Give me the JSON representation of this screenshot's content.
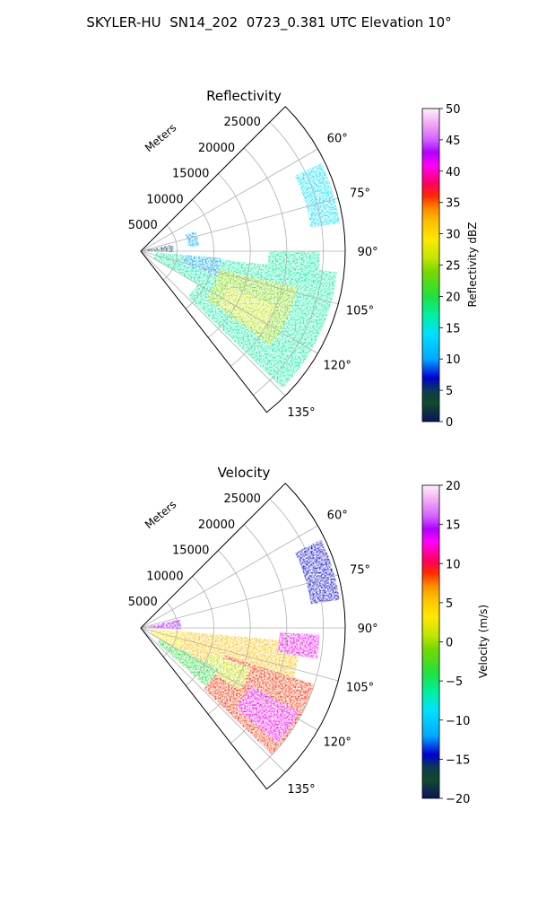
{
  "figure": {
    "suptitle": "SKYLER-HU  SN14_202  0723_0.381 UTC Elevation 10°"
  },
  "chart_data": [
    {
      "type": "polar-sector",
      "title": "Reflectivity",
      "radial_axis": {
        "label": "Meters",
        "ticks": [
          "5000",
          "10000",
          "15000",
          "20000",
          "25000"
        ],
        "tick_values": [
          5000,
          10000,
          15000,
          20000,
          25000
        ],
        "max": 28000
      },
      "azimuth_axis": {
        "ticks": [
          "60°",
          "75°",
          "90°",
          "105°",
          "120°",
          "135°"
        ],
        "tick_values": [
          60,
          75,
          90,
          105,
          120,
          135
        ],
        "range": [
          45,
          142
        ]
      },
      "colorbar": {
        "label": "Reflectivity dBZ",
        "ticks": [
          "0",
          "5",
          "10",
          "15",
          "20",
          "25",
          "30",
          "35",
          "40",
          "45",
          "50"
        ],
        "min": 0,
        "max": 50,
        "stops": [
          [
            0,
            "#0a1460"
          ],
          [
            0.06,
            "#114a2a"
          ],
          [
            0.1,
            "#0b3a55"
          ],
          [
            0.14,
            "#0000d0"
          ],
          [
            0.2,
            "#00a8ff"
          ],
          [
            0.28,
            "#00e0ff"
          ],
          [
            0.34,
            "#00f0a0"
          ],
          [
            0.4,
            "#20e040"
          ],
          [
            0.48,
            "#7ad800"
          ],
          [
            0.52,
            "#bfe600"
          ],
          [
            0.58,
            "#ffe800"
          ],
          [
            0.64,
            "#ffc000"
          ],
          [
            0.68,
            "#ff8a00"
          ],
          [
            0.72,
            "#ff2a00"
          ],
          [
            0.76,
            "#ff0060"
          ],
          [
            0.82,
            "#ff00ff"
          ],
          [
            0.86,
            "#b000ff"
          ],
          [
            0.9,
            "#d060ff"
          ],
          [
            0.95,
            "#f0a8f0"
          ],
          [
            1,
            "#fff0ff"
          ]
        ]
      },
      "echo_regions": [
        {
          "az": [
            96,
            134
          ],
          "range": [
            9000,
            27000
          ],
          "value": 20
        },
        {
          "az": [
            103,
            126
          ],
          "range": [
            11000,
            22000
          ],
          "value": 25
        },
        {
          "az": [
            112,
            124
          ],
          "range": [
            13000,
            20000
          ],
          "value": 28
        },
        {
          "az": [
            95,
            120
          ],
          "range": [
            2000,
            9000
          ],
          "value": 18
        },
        {
          "az": [
            90,
            101
          ],
          "range": [
            17500,
            24500
          ],
          "value": 19
        },
        {
          "az": [
            95,
            108
          ],
          "range": [
            6000,
            11000
          ],
          "value": 14
        },
        {
          "az": [
            78,
            92
          ],
          "range": [
            500,
            4500
          ],
          "value": 7
        },
        {
          "az": [
            64,
            82
          ],
          "range": [
            23500,
            27500
          ],
          "value": 16
        },
        {
          "az": [
            70,
            85
          ],
          "range": [
            6500,
            8000
          ],
          "value": 13
        }
      ]
    },
    {
      "type": "polar-sector",
      "title": "Velocity",
      "radial_axis": {
        "label": "Meters",
        "ticks": [
          "5000",
          "10000",
          "15000",
          "20000",
          "25000"
        ],
        "tick_values": [
          5000,
          10000,
          15000,
          20000,
          25000
        ],
        "max": 28000
      },
      "azimuth_axis": {
        "ticks": [
          "60°",
          "75°",
          "90°",
          "105°",
          "120°",
          "135°"
        ],
        "tick_values": [
          60,
          75,
          90,
          105,
          120,
          135
        ],
        "range": [
          45,
          142
        ]
      },
      "colorbar": {
        "label": "Velocity (m/s)",
        "ticks": [
          "−20",
          "−15",
          "−10",
          "−5",
          "0",
          "5",
          "10",
          "15",
          "20"
        ],
        "min": -20,
        "max": 20,
        "stops": [
          [
            0,
            "#0a1460"
          ],
          [
            0.06,
            "#114a2a"
          ],
          [
            0.1,
            "#0b3a55"
          ],
          [
            0.14,
            "#0000d0"
          ],
          [
            0.2,
            "#00a8ff"
          ],
          [
            0.28,
            "#00e0ff"
          ],
          [
            0.34,
            "#00f0a0"
          ],
          [
            0.4,
            "#20e040"
          ],
          [
            0.48,
            "#7ad800"
          ],
          [
            0.52,
            "#bfe600"
          ],
          [
            0.58,
            "#ffe800"
          ],
          [
            0.64,
            "#ffc000"
          ],
          [
            0.68,
            "#ff8a00"
          ],
          [
            0.72,
            "#ff2a00"
          ],
          [
            0.76,
            "#ff0060"
          ],
          [
            0.82,
            "#ff00ff"
          ],
          [
            0.86,
            "#b000ff"
          ],
          [
            0.9,
            "#d060ff"
          ],
          [
            0.95,
            "#f0a8f0"
          ],
          [
            1,
            "#fff0ff"
          ]
        ]
      },
      "echo_regions": [
        {
          "az": [
            95,
            130
          ],
          "range": [
            3000,
            22000
          ],
          "value": 6
        },
        {
          "az": [
            108,
            134
          ],
          "range": [
            12000,
            25000
          ],
          "value": 10
        },
        {
          "az": [
            118,
            130
          ],
          "range": [
            17000,
            24500
          ],
          "value": 13
        },
        {
          "az": [
            110,
            122
          ],
          "range": [
            10000,
            16000
          ],
          "value": 2
        },
        {
          "az": [
            92,
            100
          ],
          "range": [
            19000,
            24500
          ],
          "value": 14
        },
        {
          "az": [
            118,
            132
          ],
          "range": [
            3000,
            12000
          ],
          "value": -3
        },
        {
          "az": [
            78,
            92
          ],
          "range": [
            600,
            5500
          ],
          "value": 15
        },
        {
          "az": [
            64,
            82
          ],
          "range": [
            23500,
            27500
          ],
          "value": -12
        },
        {
          "az": [
            95,
            120
          ],
          "range": [
            1500,
            6000
          ],
          "value": 4
        }
      ]
    }
  ]
}
